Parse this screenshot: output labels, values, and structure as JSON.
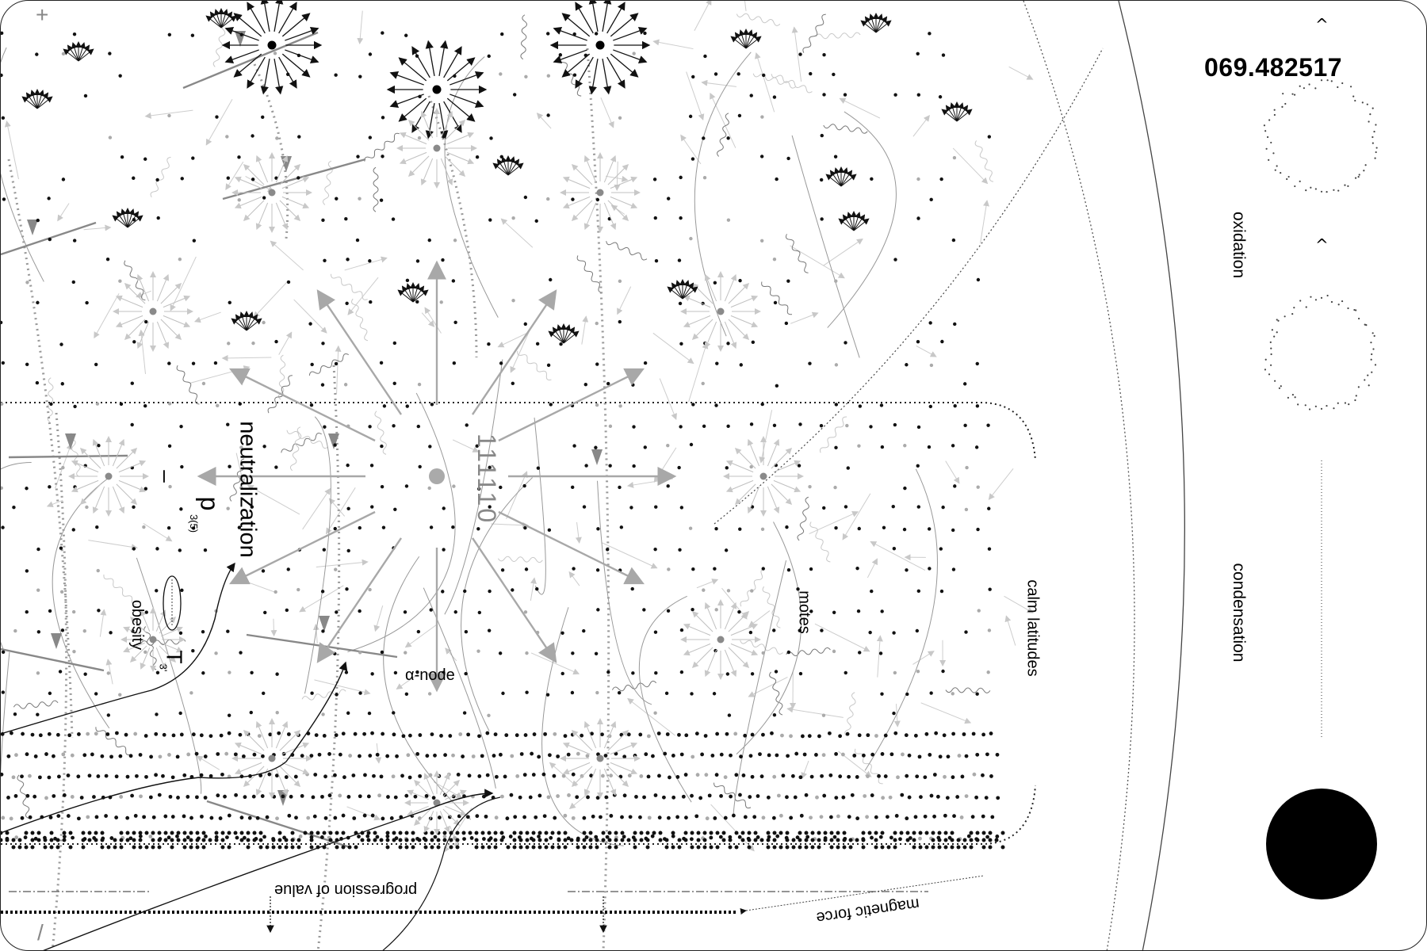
{
  "labels": {
    "neutralization": "neutralization",
    "p_symbol": "p",
    "p_subscript": "3(5)",
    "code": "111110",
    "minus": "–",
    "obesity": "obesity",
    "t_symbol": "T",
    "t_subscript": "3'",
    "alpha_node": "α-node",
    "motes": "motes",
    "calm_latitudes": "calm latitudes",
    "progression": "progression of value",
    "magnetic_force": "magnetic force",
    "plus_corner": "+",
    "slash_corner": "/"
  },
  "side_panel": {
    "readout": "069.482517",
    "caret_top": "^",
    "caret_mid": "^",
    "oxidation": "oxidation",
    "condensation": "condensation"
  },
  "colors": {
    "ink": "#000000",
    "mid_gray": "#8a8a8a",
    "light_gray": "#c4c4c4",
    "background": "#ffffff"
  }
}
